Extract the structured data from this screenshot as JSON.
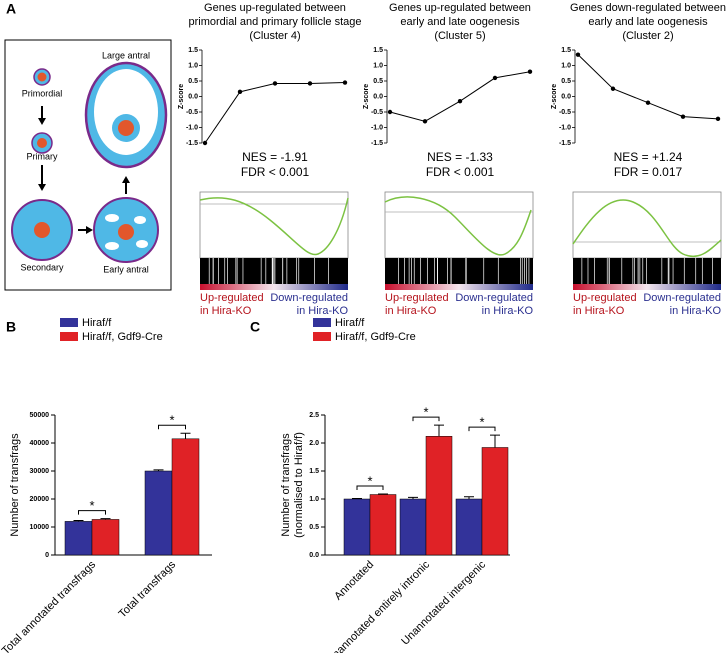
{
  "panels": [
    "A",
    "B",
    "C"
  ],
  "diagram": {
    "labels": [
      "Primordial",
      "Primary",
      "Secondary",
      "Early antral",
      "Large antral"
    ]
  },
  "chart_data": [
    {
      "type": "line",
      "title": [
        "Genes up-regulated between",
        "primordial and primary follicle stage",
        "(Cluster 4)"
      ],
      "ylabel": "Z-score",
      "categories": [
        null,
        null,
        null,
        null,
        null
      ],
      "values": [
        -1.5,
        0.15,
        0.42,
        0.42,
        0.45
      ],
      "color": "#000000",
      "ylim": [
        -1.5,
        1.5
      ],
      "yticks": [
        -1.5,
        {
          "value": -1.0,
          "label": "-1.0"
        },
        -0.5,
        {
          "value": 0,
          "label": "0.0"
        },
        0.5,
        {
          "value": 1.0,
          "label": "1.0"
        },
        1.5
      ],
      "annotations": [
        "NES = -1.91",
        "FDR < 0.001"
      ],
      "gsea_labels": [
        "Up-regulated",
        "in Hira-KO",
        "Down-regulated",
        "in Hira-KO"
      ]
    },
    {
      "type": "line",
      "title": [
        "Genes up-regulated between",
        "early and late oogenesis",
        "(Cluster 5)"
      ],
      "ylabel": "Z-score",
      "categories": [
        null,
        null,
        null,
        null,
        null
      ],
      "values": [
        -0.5,
        -0.8,
        -0.15,
        0.6,
        0.8
      ],
      "color": "#000000",
      "ylim": [
        -1.5,
        1.5
      ],
      "yticks": [
        -1.5,
        {
          "value": -1.0,
          "label": "-1.0"
        },
        -0.5,
        {
          "value": 0,
          "label": "0.0"
        },
        0.5,
        {
          "value": 1.0,
          "label": "1.0"
        },
        1.5
      ],
      "annotations": [
        "NES = -1.33",
        "FDR < 0.001"
      ],
      "gsea_labels": [
        "Up-regulated",
        "in Hira-KO",
        "Down-regulated",
        "in Hira-KO"
      ]
    },
    {
      "type": "line",
      "title": [
        "Genes down-regulated between",
        "early and late oogenesis",
        "(Cluster 2)"
      ],
      "ylabel": "Z-score",
      "categories": [
        null,
        null,
        null,
        null,
        null
      ],
      "values": [
        1.35,
        0.25,
        -0.2,
        -0.65,
        -0.72
      ],
      "color": "#000000",
      "ylim": [
        -1.5,
        1.5
      ],
      "yticks": [
        -1.5,
        {
          "value": -1.0,
          "label": "-1.0"
        },
        -0.5,
        {
          "value": 0,
          "label": "0.0"
        },
        0.5,
        {
          "value": 1.0,
          "label": "1.0"
        },
        1.5
      ],
      "annotations": [
        "NES = +1.24",
        "FDR = 0.017"
      ],
      "gsea_labels": [
        "Up-regulated",
        "in Hira-KO",
        "Down-regulated",
        "in Hira-KO"
      ]
    },
    {
      "type": "bar",
      "ylabel": [
        "Number of transfrags"
      ],
      "categories": [
        "Total annotated transfrags",
        "Total transfrags"
      ],
      "series": [
        {
          "name": "Hiraf/f",
          "color": "#33339a",
          "values": [
            12000,
            30000
          ],
          "errors": [
            300,
            400
          ]
        },
        {
          "name": "Hiraf/f, Gdf9-Cre",
          "color": "#e02226",
          "values": [
            12700,
            41500
          ],
          "errors": [
            300,
            2000
          ]
        }
      ],
      "ylim": [
        0,
        50000
      ],
      "yticks": [
        0,
        10000,
        20000,
        30000,
        40000,
        50000
      ],
      "annotations": [
        "*",
        "*"
      ]
    },
    {
      "type": "bar",
      "ylabel": [
        "Number of transfrags",
        "(normalised to Hiraf/f)"
      ],
      "categories": [
        "Annotated",
        "Unannotated entirely intronic",
        "Unannotated intergenic"
      ],
      "series": [
        {
          "name": "Hiraf/f",
          "color": "#33339a",
          "values": [
            1.0,
            1.0,
            1.0
          ],
          "errors": [
            0.01,
            0.03,
            0.04
          ]
        },
        {
          "name": "Hiraf/f, Gdf9-Cre",
          "color": "#e02226",
          "values": [
            1.08,
            2.12,
            1.92
          ],
          "errors": [
            0.01,
            0.2,
            0.22
          ]
        }
      ],
      "ylim": [
        0,
        2.5
      ],
      "yticks": [
        {
          "value": 0,
          "label": "0.0"
        },
        0.5,
        {
          "value": 1.0,
          "label": "1.0"
        },
        1.5,
        {
          "value": 2.0,
          "label": "2.0"
        },
        2.5
      ],
      "annotations": [
        "*",
        "*",
        "*"
      ]
    }
  ]
}
